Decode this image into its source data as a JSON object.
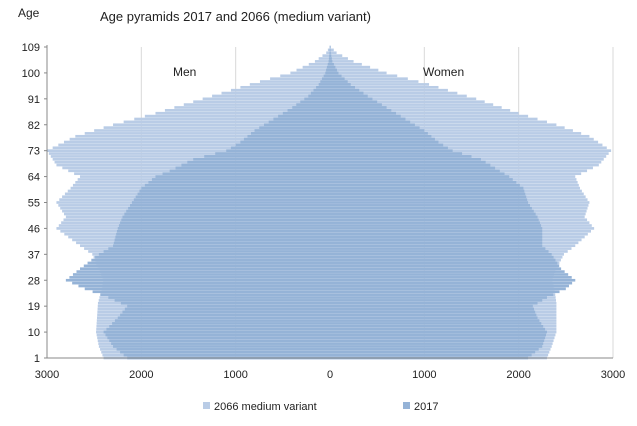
{
  "chart_data": {
    "type": "population-pyramid",
    "title": "Age pyramids 2017 and 2066  (medium variant)",
    "yaxis_label": "Age",
    "left_label": "Men",
    "right_label": "Women",
    "x_ticks": [
      "3000",
      "2000",
      "1000",
      "0",
      "1000",
      "2000",
      "3000"
    ],
    "xlim": [
      -3000,
      3000
    ],
    "y_ticks": [
      "1",
      "10",
      "19",
      "28",
      "37",
      "46",
      "55",
      "64",
      "73",
      "82",
      "91",
      "100",
      "109"
    ],
    "ylim": [
      1,
      109
    ],
    "grid": "vertical",
    "legend_position": "bottom",
    "colors": {
      "s2066": "#b9cce6",
      "s2017": "#95b3d7",
      "axis": "#888888",
      "grid": "#d9d9d9"
    },
    "series": [
      {
        "name": "2066 medium variant",
        "key": "s2066",
        "points": {
          "ages": [
            1,
            5,
            10,
            15,
            20,
            25,
            28,
            32,
            37,
            40,
            46,
            50,
            55,
            60,
            64,
            68,
            73,
            78,
            82,
            86,
            91,
            96,
            100,
            104,
            107,
            109
          ],
          "men": [
            2400,
            2450,
            2480,
            2470,
            2460,
            2420,
            2400,
            2450,
            2520,
            2650,
            2900,
            2800,
            2900,
            2750,
            2650,
            2900,
            3000,
            2700,
            2300,
            1850,
            1350,
            850,
            420,
            160,
            40,
            5
          ],
          "women": [
            2300,
            2350,
            2400,
            2400,
            2400,
            2380,
            2350,
            2400,
            2480,
            2600,
            2800,
            2700,
            2750,
            2650,
            2600,
            2850,
            2980,
            2750,
            2400,
            2000,
            1550,
            1050,
            600,
            250,
            70,
            10
          ]
        }
      },
      {
        "name": "2017",
        "key": "s2017",
        "points": {
          "ages": [
            1,
            5,
            10,
            15,
            19,
            22,
            25,
            28,
            32,
            37,
            40,
            46,
            50,
            55,
            60,
            64,
            66,
            70,
            73,
            76,
            80,
            84,
            88,
            92,
            96,
            100,
            104,
            107,
            109
          ],
          "men": [
            2150,
            2300,
            2400,
            2250,
            2150,
            2350,
            2600,
            2800,
            2650,
            2450,
            2300,
            2250,
            2200,
            2100,
            2000,
            1850,
            1700,
            1450,
            1100,
            950,
            800,
            600,
            400,
            230,
            120,
            50,
            15,
            5,
            2
          ],
          "women": [
            2100,
            2250,
            2300,
            2200,
            2150,
            2300,
            2500,
            2600,
            2450,
            2350,
            2250,
            2250,
            2200,
            2100,
            2050,
            1900,
            1800,
            1600,
            1300,
            1150,
            1000,
            800,
            600,
            400,
            220,
            90,
            25,
            8,
            2
          ]
        }
      }
    ]
  }
}
